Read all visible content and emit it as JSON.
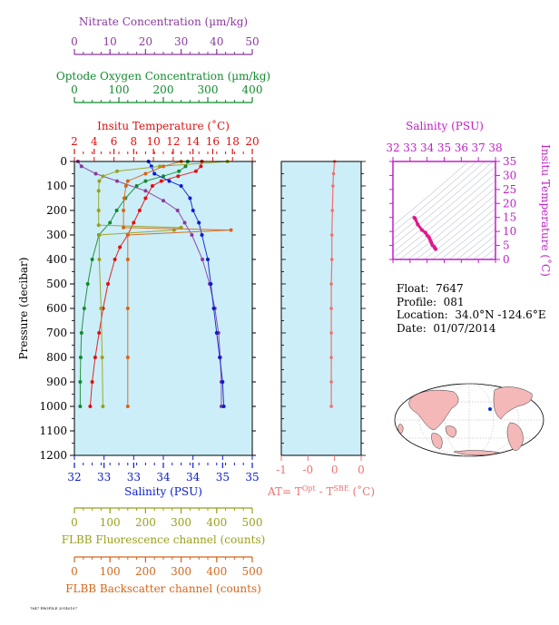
{
  "colors": {
    "nitrate": "#8b3a9e",
    "oxygen": "#128a2e",
    "temperature": "#e01010",
    "salinity": "#0a1cd0",
    "fluorescence": "#9aa01a",
    "backscatter": "#d4661a",
    "deltaT": "#f07070",
    "ts_curve": "#e0188c",
    "ts_frame": "#c020c8",
    "panel_bg": "#cceef8",
    "land": "#f4b8b8"
  },
  "profile_info": {
    "float_label": "Float:",
    "float_value": "7647",
    "profile_label": "Profile:",
    "profile_value": "081",
    "location_label": "Location:",
    "location_value": "34.0°N  -124.6°E",
    "date_label": "Date:",
    "date_value": "01/07/2014"
  },
  "footer_text": "7647 PROFILE 20140107",
  "chart_data": [
    {
      "type": "line",
      "panel": "main-profile",
      "title": "",
      "ylabel": "Pressure (decibar)",
      "ylim": [
        1200,
        0
      ],
      "yticks": [
        0,
        100,
        200,
        300,
        400,
        500,
        600,
        700,
        800,
        900,
        1000,
        1100,
        1200
      ],
      "grid": false,
      "axes": [
        {
          "key": "nitrate",
          "label": "Nitrate Concentration (µm/kg)",
          "range": [
            0,
            50
          ],
          "ticks": [
            0,
            10,
            20,
            30,
            40,
            50
          ]
        },
        {
          "key": "oxygen",
          "label": "Optode Oxygen Concentration (µm/kg)",
          "range": [
            0,
            400
          ],
          "ticks": [
            0,
            100,
            200,
            300,
            400
          ]
        },
        {
          "key": "temperature",
          "label": "Insitu Temperature (˚C)",
          "range": [
            2,
            20
          ],
          "ticks": [
            2,
            4,
            6,
            8,
            10,
            12,
            14,
            16,
            18,
            20
          ]
        },
        {
          "key": "salinity",
          "label": "Salinity (PSU)",
          "range": [
            32,
            35
          ],
          "ticks": [
            "32",
            "32.5",
            "33",
            "33.5",
            "34",
            "34.5",
            "35"
          ],
          "tick_labels": [
            "32",
            "33",
            "33",
            "34",
            "34",
            "35",
            "35"
          ]
        },
        {
          "key": "fluorescence",
          "label": "FLBB Fluorescence channel (counts)",
          "range": [
            0,
            500
          ],
          "ticks": [
            0,
            100,
            200,
            300,
            400,
            500
          ]
        },
        {
          "key": "backscatter",
          "label": "FLBB Backscatter channel (counts)",
          "range": [
            0,
            500
          ],
          "ticks": [
            0,
            100,
            200,
            300,
            400,
            500
          ]
        }
      ],
      "series": [
        {
          "key": "nitrate",
          "axis": "nitrate",
          "values": [
            [
              0,
              1
            ],
            [
              20,
              2
            ],
            [
              50,
              6
            ],
            [
              80,
              12
            ],
            [
              120,
              20
            ],
            [
              160,
              25
            ],
            [
              200,
              29
            ],
            [
              250,
              31
            ],
            [
              300,
              33
            ],
            [
              400,
              36
            ],
            [
              500,
              38
            ],
            [
              600,
              39.5
            ],
            [
              700,
              40.5
            ],
            [
              800,
              41
            ],
            [
              900,
              41.3
            ],
            [
              1000,
              41.3
            ]
          ]
        },
        {
          "key": "oxygen",
          "axis": "oxygen",
          "values": [
            [
              0,
              255
            ],
            [
              20,
              250
            ],
            [
              40,
              235
            ],
            [
              60,
              200
            ],
            [
              80,
              160
            ],
            [
              100,
              140
            ],
            [
              150,
              115
            ],
            [
              200,
              95
            ],
            [
              250,
              80
            ],
            [
              300,
              55
            ],
            [
              400,
              40
            ],
            [
              500,
              30
            ],
            [
              600,
              22
            ],
            [
              700,
              16
            ],
            [
              800,
              14
            ],
            [
              900,
              13
            ],
            [
              1000,
              13
            ]
          ]
        },
        {
          "key": "temperature",
          "axis": "temperature",
          "values": [
            [
              0,
              14.9
            ],
            [
              20,
              14.8
            ],
            [
              40,
              14.3
            ],
            [
              60,
              12.5
            ],
            [
              80,
              10.8
            ],
            [
              100,
              9.9
            ],
            [
              150,
              9.2
            ],
            [
              200,
              8.6
            ],
            [
              250,
              8.0
            ],
            [
              300,
              7.4
            ],
            [
              350,
              6.6
            ],
            [
              400,
              6.1
            ],
            [
              500,
              5.4
            ],
            [
              600,
              4.9
            ],
            [
              700,
              4.5
            ],
            [
              800,
              4.1
            ],
            [
              900,
              3.8
            ],
            [
              1000,
              3.6
            ]
          ]
        },
        {
          "key": "salinity",
          "axis": "salinity",
          "values": [
            [
              0,
              33.25
            ],
            [
              20,
              33.3
            ],
            [
              50,
              33.35
            ],
            [
              80,
              33.6
            ],
            [
              100,
              33.8
            ],
            [
              150,
              33.95
            ],
            [
              200,
              34.0
            ],
            [
              250,
              34.1
            ],
            [
              300,
              34.15
            ],
            [
              400,
              34.25
            ],
            [
              500,
              34.3
            ],
            [
              600,
              34.35
            ],
            [
              700,
              34.4
            ],
            [
              800,
              34.45
            ],
            [
              900,
              34.5
            ],
            [
              1000,
              34.52
            ]
          ]
        },
        {
          "key": "fluorescence",
          "axis": "fluorescence",
          "values": [
            [
              0,
              430
            ],
            [
              20,
              240
            ],
            [
              40,
              120
            ],
            [
              60,
              80
            ],
            [
              80,
              70
            ],
            [
              120,
              68
            ],
            [
              200,
              68
            ],
            [
              260,
              68
            ],
            [
              270,
              300
            ],
            [
              280,
              280
            ],
            [
              300,
              70
            ],
            [
              400,
              70
            ],
            [
              600,
              75
            ],
            [
              800,
              78
            ],
            [
              1000,
              80
            ]
          ]
        },
        {
          "key": "backscatter",
          "axis": "backscatter",
          "values": [
            [
              0,
              300
            ],
            [
              20,
              250
            ],
            [
              50,
              200
            ],
            [
              80,
              150
            ],
            [
              100,
              145
            ],
            [
              150,
              140
            ],
            [
              200,
              138
            ],
            [
              270,
              138
            ],
            [
              280,
              440
            ],
            [
              300,
              150
            ],
            [
              400,
              150
            ],
            [
              600,
              150
            ],
            [
              800,
              150
            ],
            [
              1000,
              150
            ]
          ]
        }
      ]
    },
    {
      "type": "line",
      "panel": "delta-t",
      "title": "",
      "xlabel": "AT= T",
      "xlabel_sup1": "Opt",
      "xlabel_mid": " - T",
      "xlabel_sup2": "SBE",
      "xlabel_unit": " (˚C)",
      "xlim": [
        -1,
        0.5
      ],
      "xticks": [
        -1,
        -0.5,
        0,
        0.5
      ],
      "xtick_labels": [
        "-1",
        "-0",
        "0",
        "0"
      ],
      "ylim": [
        1200,
        0
      ],
      "series": [
        {
          "name": "",
          "values": [
            [
              0,
              0.0
            ],
            [
              50,
              -0.02
            ],
            [
              100,
              -0.03
            ],
            [
              200,
              -0.04
            ],
            [
              300,
              -0.05
            ],
            [
              400,
              -0.05
            ],
            [
              500,
              -0.06
            ],
            [
              600,
              -0.06
            ],
            [
              700,
              -0.06
            ],
            [
              800,
              -0.06
            ],
            [
              900,
              -0.06
            ],
            [
              1000,
              -0.06
            ]
          ]
        }
      ]
    },
    {
      "type": "scatter",
      "panel": "ts-diagram",
      "title": "Salinity (PSU)",
      "xlabel": "Salinity (PSU)",
      "ylabel": "Insitu Temperature (˚C)",
      "xlim": [
        32,
        38
      ],
      "ylim": [
        0,
        35
      ],
      "xticks": [
        32,
        33,
        34,
        35,
        36,
        37,
        38
      ],
      "yticks": [
        0,
        5,
        10,
        15,
        20,
        25,
        30,
        35
      ],
      "series": [
        {
          "name": "",
          "values": [
            [
              33.25,
              14.9
            ],
            [
              33.3,
              14.6
            ],
            [
              33.45,
              12.5
            ],
            [
              33.7,
              10.5
            ],
            [
              33.9,
              9.6
            ],
            [
              34.0,
              8.6
            ],
            [
              34.1,
              8.0
            ],
            [
              34.15,
              7.4
            ],
            [
              34.2,
              6.6
            ],
            [
              34.25,
              6.0
            ],
            [
              34.3,
              5.2
            ],
            [
              34.4,
              4.6
            ],
            [
              34.45,
              4.1
            ],
            [
              34.5,
              3.7
            ]
          ]
        }
      ]
    }
  ]
}
